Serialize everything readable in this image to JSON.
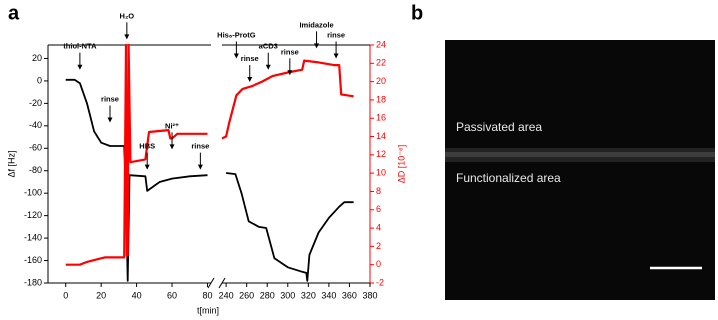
{
  "chart_data": {
    "type": "line",
    "xlabel": "t[min]",
    "ylabel": "Δf [Hz]",
    "y2label": "ΔD [10⁻⁶]",
    "xlim": [
      -10,
      380
    ],
    "xbreak": [
      82,
      236
    ],
    "xticks": [
      0,
      20,
      40,
      60,
      80,
      240,
      260,
      280,
      300,
      320,
      340,
      360,
      380
    ],
    "ylim": [
      -180,
      32
    ],
    "yticks": [
      -180,
      -160,
      -140,
      -120,
      -100,
      -80,
      -60,
      -40,
      -20,
      0,
      20
    ],
    "y2lim": [
      -2,
      24
    ],
    "y2ticks": [
      -2,
      0,
      2,
      4,
      6,
      8,
      10,
      12,
      14,
      16,
      18,
      20,
      22,
      24
    ],
    "series": [
      {
        "color": "#000000",
        "x": [
          0,
          5,
          8,
          12,
          16,
          20,
          25,
          33,
          34,
          35,
          36,
          45,
          46,
          53,
          60,
          70,
          80,
          160,
          240,
          249,
          255,
          262,
          272,
          279,
          287,
          300,
          314,
          318,
          319,
          321,
          330,
          340,
          350,
          355,
          364
        ],
        "values": [
          1,
          1,
          -2,
          -20,
          -45,
          -55,
          -58,
          -58,
          -100,
          -178,
          -84,
          -85,
          -98,
          -90,
          -87,
          -85,
          -84,
          null,
          -82,
          -83,
          -100,
          -125,
          -130,
          -131,
          -158,
          -166,
          -170,
          -171,
          -178,
          -155,
          -135,
          -122,
          -112,
          -108,
          -108
        ]
      },
      {
        "color": "#ff0000",
        "axis": "y2",
        "x": [
          0,
          8,
          12,
          18,
          22,
          33,
          34,
          34.5,
          35,
          35.5,
          36.5,
          45,
          46,
          47,
          58,
          59,
          60,
          63,
          80,
          160,
          236,
          240,
          243,
          250,
          256,
          265,
          275,
          285,
          300,
          314,
          316,
          330,
          345,
          350,
          352,
          364
        ],
        "values": [
          0,
          0,
          0.3,
          0.6,
          0.8,
          0.8,
          24,
          1,
          1,
          24,
          11.2,
          11.5,
          13,
          14.5,
          14.7,
          13.8,
          13.8,
          14.3,
          14.3,
          null,
          13.8,
          14,
          15.5,
          18.5,
          19.2,
          19.5,
          20,
          20.6,
          21,
          21.3,
          22.3,
          22.1,
          21.8,
          21.8,
          18.6,
          18.4
        ]
      }
    ],
    "annotations": [
      {
        "text": "thiol-NTA",
        "x": 8,
        "y": 10
      },
      {
        "text": "rinse",
        "x": 25,
        "y": -37
      },
      {
        "text": "H₂O",
        "x": 34.5,
        "y": 37
      },
      {
        "text": "HBS",
        "x": 46,
        "y": -79
      },
      {
        "text": "Ni²⁺",
        "x": 60,
        "y": -61
      },
      {
        "text": "rinse",
        "x": 76,
        "y": -79
      },
      {
        "text": "His₆-ProtG",
        "x": 250,
        "y": 20
      },
      {
        "text": "rinse",
        "x": 263,
        "y": -1
      },
      {
        "text": "aCD3",
        "x": 281,
        "y": 10
      },
      {
        "text": "rinse",
        "x": 302,
        "y": 5
      },
      {
        "text": "Imidazole",
        "x": 328,
        "y": 29
      },
      {
        "text": "rinse",
        "x": 347,
        "y": 20
      }
    ]
  },
  "panel_labels": [
    "a",
    "b"
  ],
  "image": {
    "labels": [
      "Passivated area",
      "Functionalized area"
    ]
  }
}
